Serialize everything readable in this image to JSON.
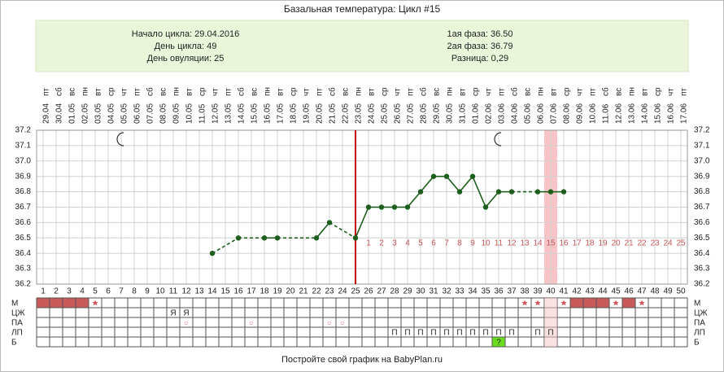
{
  "title": "Базальная температура: Цикл #15",
  "info": {
    "left": [
      "Начало цикла: 29.04.2016",
      "День цикла: 49",
      "День овуляции: 25"
    ],
    "right": [
      "1ая фаза: 36.50",
      "2ая фаза: 36.79",
      "Разница: 0,29"
    ]
  },
  "chart_data": {
    "type": "line",
    "x": [
      1,
      2,
      3,
      4,
      5,
      6,
      7,
      8,
      9,
      10,
      11,
      12,
      13,
      14,
      15,
      16,
      17,
      18,
      19,
      20,
      21,
      22,
      23,
      24,
      25,
      26,
      27,
      28,
      29,
      30,
      31,
      32,
      33,
      34,
      35,
      36,
      37,
      38,
      39,
      40,
      41,
      42,
      43,
      44,
      45,
      46,
      47,
      48,
      49,
      50
    ],
    "dates": [
      "29.04",
      "30.04",
      "01.05",
      "02.05",
      "03.05",
      "04.05",
      "05.05",
      "06.05",
      "07.05",
      "08.05",
      "09.05",
      "10.05",
      "11.05",
      "12.05",
      "13.05",
      "14.05",
      "15.05",
      "16.05",
      "17.05",
      "18.05",
      "19.05",
      "20.05",
      "21.05",
      "22.05",
      "23.05",
      "24.05",
      "25.05",
      "26.05",
      "27.05",
      "28.05",
      "29.05",
      "30.05",
      "31.05",
      "01.06",
      "02.06",
      "03.06",
      "04.06",
      "05.06",
      "06.06",
      "07.06",
      "08.06",
      "09.06",
      "10.06",
      "11.06",
      "12.06",
      "13.06",
      "14.06",
      "15.06",
      "16.06",
      "17.06"
    ],
    "weekdays": [
      "пт",
      "сб",
      "вс",
      "пн",
      "вт",
      "ср",
      "чт",
      "пт",
      "сб",
      "вс",
      "пн",
      "вт",
      "ср",
      "чт",
      "пт",
      "сб",
      "вс",
      "пн",
      "вт",
      "ср",
      "чт",
      "пт",
      "сб",
      "вс",
      "пн",
      "вт",
      "ср",
      "чт",
      "пт",
      "сб",
      "вс",
      "пн",
      "вт",
      "ср",
      "чт",
      "пт",
      "сб",
      "вс",
      "пн",
      "вт",
      "ср",
      "чт",
      "пт",
      "сб",
      "вс",
      "пн",
      "вт",
      "ср",
      "чт",
      "пт"
    ],
    "series": [
      {
        "color": "#1d5e1d",
        "values": [
          null,
          null,
          null,
          null,
          null,
          null,
          null,
          null,
          null,
          null,
          null,
          null,
          null,
          36.4,
          null,
          36.5,
          null,
          36.5,
          36.5,
          null,
          null,
          36.5,
          36.6,
          null,
          36.5,
          36.7,
          36.7,
          36.7,
          36.7,
          36.8,
          36.9,
          36.9,
          36.8,
          36.9,
          36.7,
          36.8,
          36.8,
          null,
          36.8,
          36.8,
          36.8,
          null,
          null,
          null,
          null,
          null,
          null,
          null,
          null,
          null
        ]
      }
    ],
    "ylim": [
      36.2,
      37.2
    ],
    "yticks": [
      36.2,
      36.3,
      36.4,
      36.5,
      36.6,
      36.7,
      36.8,
      36.9,
      {
        "value": 37,
        "label": "37.0"
      },
      37.1,
      37.2
    ],
    "grid": true,
    "ovulation_day": 25,
    "highlight_day": 40,
    "moon_days": [
      7,
      36
    ],
    "phase2_day_numbers": [
      1,
      2,
      3,
      4,
      5,
      6,
      7,
      8,
      9,
      10,
      11,
      12,
      13,
      14,
      15,
      16,
      17,
      18,
      19,
      20,
      21,
      22,
      23,
      24,
      25
    ]
  },
  "table_rows": [
    {
      "label": "М",
      "filled_days": [
        1,
        2,
        3,
        4,
        42,
        43,
        44,
        46
      ],
      "symbol": "★",
      "symbol_days": [
        5,
        38,
        39,
        41,
        45,
        47
      ]
    },
    {
      "label": "ЦЖ",
      "symbol": "Я",
      "symbol_days": [
        11,
        12
      ]
    },
    {
      "label": "ПА",
      "symbol": "○",
      "symbol_days": [
        12,
        17,
        23,
        24
      ]
    },
    {
      "label": "ЛП",
      "symbol": "П",
      "symbol_days": [
        28,
        29,
        30,
        31,
        32,
        33,
        34,
        35,
        36,
        37,
        39,
        40
      ]
    },
    {
      "label": "Б",
      "filled_days": [
        36
      ],
      "symbol": "?",
      "symbol_days": [
        36
      ]
    }
  ],
  "footer": "Постройте свой график на BabyPlan.ru"
}
